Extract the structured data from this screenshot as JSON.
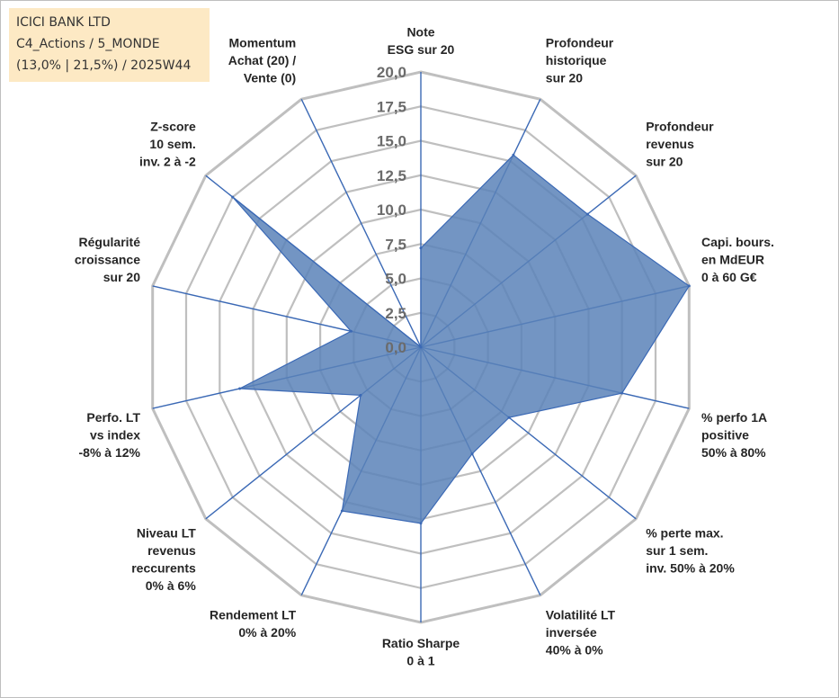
{
  "info": {
    "line1": "ICICI BANK LTD",
    "line2": "C4_Actions / 5_MONDE",
    "line3": "(13,0% | 21,5%) / 2025W44"
  },
  "chart_data": {
    "type": "radar",
    "title": "",
    "range": [
      0,
      20
    ],
    "grid": true,
    "tick_values": [
      0,
      2.5,
      5,
      7.5,
      10,
      12.5,
      15,
      17.5,
      20
    ],
    "tick_labels": [
      "0,0",
      "2,5",
      "5,0",
      "7,5",
      "10,0",
      "12,5",
      "15,0",
      "17,5",
      "20,0"
    ],
    "axes": [
      [
        "Note",
        "ESG sur 20"
      ],
      [
        "Profondeur",
        "historique",
        "sur 20"
      ],
      [
        "Profondeur",
        "revenus",
        "sur 20"
      ],
      [
        "Capi. bours.",
        "en MdEUR",
        "0 à 60 G€"
      ],
      [
        "% perfo 1A",
        "positive",
        "50% à 80%"
      ],
      [
        "% perte max.",
        "sur 1 sem.",
        "inv. 50% à 20%"
      ],
      [
        "Volatilité LT",
        "inversée",
        "40% à 0%"
      ],
      [
        "Ratio Sharpe",
        "0 à 1"
      ],
      [
        "Rendement LT",
        "0% à 20%"
      ],
      [
        "Niveau LT",
        "revenus",
        "reccurents",
        "0% à 6%"
      ],
      [
        "Perfo. LT",
        "vs index",
        "-8% à 12%"
      ],
      [
        "Régularité",
        "croissance",
        "sur 20"
      ],
      [
        "Z-score",
        "10 sem.",
        "inv. 2 à -2"
      ],
      [
        "Momentum",
        "Achat (20) /",
        "Vente (0)"
      ]
    ],
    "series": [
      {
        "values": [
          7.2,
          15.5,
          15.5,
          20.0,
          15.0,
          8.2,
          8.6,
          12.8,
          13.2,
          5.6,
          13.5,
          5.2,
          17.5,
          0
        ]
      }
    ],
    "colors": {
      "fill": "#5b82b8",
      "line": "#3b69b5",
      "grid": "#bfbfbf"
    }
  }
}
